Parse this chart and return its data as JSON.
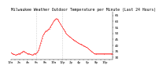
{
  "title": "Milwaukee Weather Outdoor Temperature per Minute (Last 24 Hours)",
  "title_fontsize": 3.5,
  "background_color": "#ffffff",
  "line_color": "#ff0000",
  "x_values": [
    0,
    1,
    2,
    3,
    4,
    5,
    6,
    7,
    8,
    9,
    10,
    11,
    12,
    13,
    14,
    15,
    16,
    17,
    18,
    19,
    20,
    21,
    22,
    23,
    24,
    25,
    26,
    27,
    28,
    29,
    30,
    31,
    32,
    33,
    34,
    35,
    36,
    37,
    38,
    39,
    40,
    41,
    42,
    43,
    44,
    45,
    46,
    47,
    48,
    49,
    50,
    51,
    52,
    53,
    54,
    55,
    56,
    57,
    58,
    59,
    60,
    61,
    62,
    63,
    64,
    65,
    66,
    67,
    68,
    69,
    70,
    71,
    72,
    73,
    74,
    75,
    76,
    77,
    78,
    79,
    80,
    81,
    82,
    83,
    84,
    85,
    86,
    87,
    88,
    89,
    90,
    91,
    92,
    93,
    94,
    95,
    96,
    97,
    98,
    99,
    100,
    101,
    102,
    103,
    104,
    105,
    106,
    107,
    108,
    109,
    110,
    111,
    112,
    113,
    114,
    115,
    116,
    117,
    118,
    119,
    120,
    121,
    122,
    123,
    124,
    125,
    126,
    127,
    128,
    129,
    130,
    131,
    132,
    133,
    134,
    135,
    136,
    137,
    138,
    139,
    140,
    141,
    142,
    143
  ],
  "y_values": [
    34,
    33.5,
    33,
    33,
    32.5,
    32.5,
    32,
    32,
    32,
    32.5,
    32.5,
    33,
    33,
    33,
    33.5,
    34,
    34,
    35,
    35,
    35,
    34,
    34,
    33.5,
    33,
    33,
    33,
    33,
    32.5,
    32.5,
    32,
    32,
    32,
    32.5,
    33,
    33,
    33,
    33.5,
    34,
    35,
    36,
    38,
    40,
    42,
    44,
    46,
    48,
    49,
    50,
    51,
    52,
    52,
    52.5,
    53,
    53.5,
    54,
    55,
    56,
    57,
    58,
    59,
    60,
    61,
    61.5,
    62,
    62.5,
    62,
    61.5,
    60.5,
    59.5,
    58.5,
    57.5,
    56.5,
    55.5,
    54.5,
    53.5,
    52.5,
    51.5,
    50.5,
    49.5,
    49,
    48.5,
    48,
    47.5,
    47,
    46.5,
    46,
    45.5,
    45,
    44.5,
    44,
    44,
    43.5,
    43,
    42.5,
    42,
    42,
    41.5,
    41,
    41,
    40.5,
    40.5,
    40,
    39.5,
    39.5,
    39,
    38.5,
    38.5,
    38,
    37.5,
    37,
    36.5,
    36,
    35.5,
    35,
    34.5,
    34,
    33.5,
    33,
    33,
    33,
    33,
    33,
    33,
    33,
    33,
    33,
    33,
    33,
    33,
    33,
    33,
    33,
    33,
    33,
    33,
    33,
    33,
    33,
    33,
    33,
    33,
    33,
    33,
    33,
    33,
    33,
    33
  ],
  "ylim": [
    28,
    68
  ],
  "yticks": [
    30,
    35,
    40,
    45,
    50,
    55,
    60,
    65
  ],
  "ytick_fontsize": 3.0,
  "xtick_labels": [
    "12a",
    "",
    "2a",
    "",
    "4a",
    "",
    "6a",
    "",
    "8a",
    "",
    "10a",
    "",
    "12p",
    "",
    "2p",
    "",
    "4p",
    "",
    "6p",
    "",
    "8p",
    "",
    "10p",
    ""
  ],
  "xtick_positions": [
    0,
    6,
    12,
    18,
    24,
    30,
    36,
    42,
    48,
    54,
    60,
    66,
    72,
    78,
    84,
    90,
    96,
    102,
    108,
    114,
    120,
    126,
    132,
    138
  ],
  "xtick_fontsize": 2.8,
  "vline_positions": [
    36,
    72
  ],
  "vline_color": "#aaaaaa",
  "marker_size": 0.8,
  "linewidth": 0.4
}
